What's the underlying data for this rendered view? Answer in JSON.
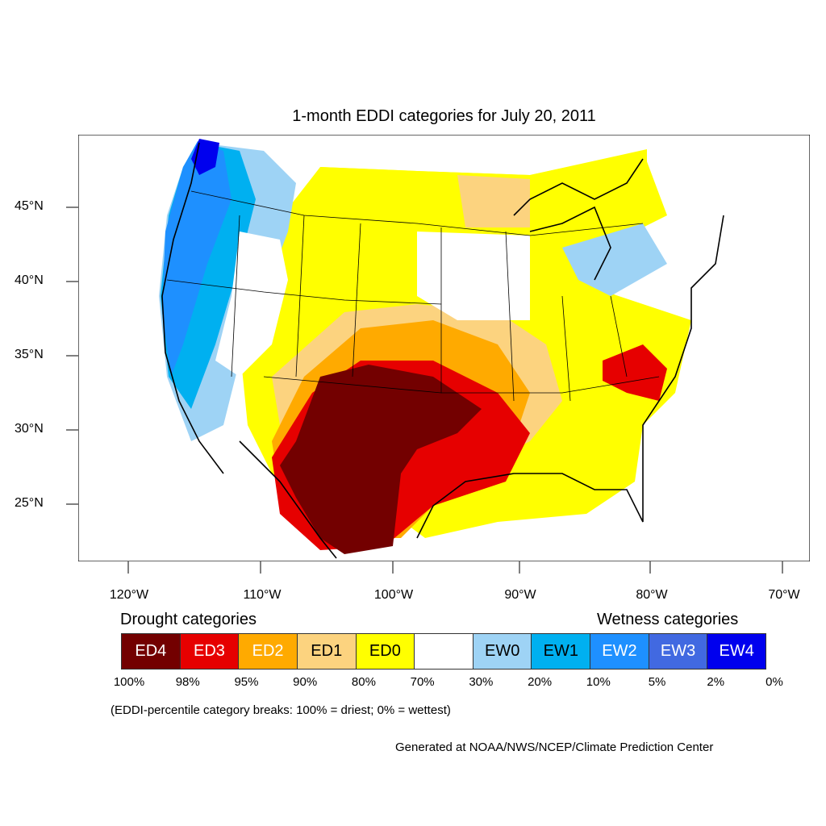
{
  "title": "1-month EDDI categories for July 20, 2011",
  "lat_labels": [
    "45°N",
    "40°N",
    "35°N",
    "30°N",
    "25°N"
  ],
  "lon_labels": [
    "120°W",
    "110°W",
    "100°W",
    "90°W",
    "80°W",
    "70°W"
  ],
  "drought_heading": "Drought categories",
  "wetness_heading": "Wetness categories",
  "legend": [
    {
      "label": "ED4",
      "color": "#730000",
      "text_color": "#ffffff"
    },
    {
      "label": "ED3",
      "color": "#e60000",
      "text_color": "#ffffff"
    },
    {
      "label": "ED2",
      "color": "#ffaa00",
      "text_color": "#ffffff"
    },
    {
      "label": "ED1",
      "color": "#fcd37f",
      "text_color": "#000000"
    },
    {
      "label": "ED0",
      "color": "#ffff00",
      "text_color": "#000000"
    },
    {
      "label": "",
      "color": "#ffffff",
      "text_color": "#000000"
    },
    {
      "label": "EW0",
      "color": "#9ed3f5",
      "text_color": "#000000"
    },
    {
      "label": "EW1",
      "color": "#00b0f0",
      "text_color": "#000000"
    },
    {
      "label": "EW2",
      "color": "#1e90ff",
      "text_color": "#ffffff"
    },
    {
      "label": "EW3",
      "color": "#4169e1",
      "text_color": "#ffffff"
    },
    {
      "label": "EW4",
      "color": "#0000ee",
      "text_color": "#ffffff"
    }
  ],
  "percent_labels": [
    "100%",
    "98%",
    "95%",
    "90%",
    "80%",
    "70%",
    "30%",
    "20%",
    "10%",
    "5%",
    "2%",
    "0%"
  ],
  "note": "(EDDI-percentile category breaks: 100% = driest; 0% = wettest)",
  "credit": "Generated at NOAA/NWS/NCEP/Climate Prediction Center"
}
